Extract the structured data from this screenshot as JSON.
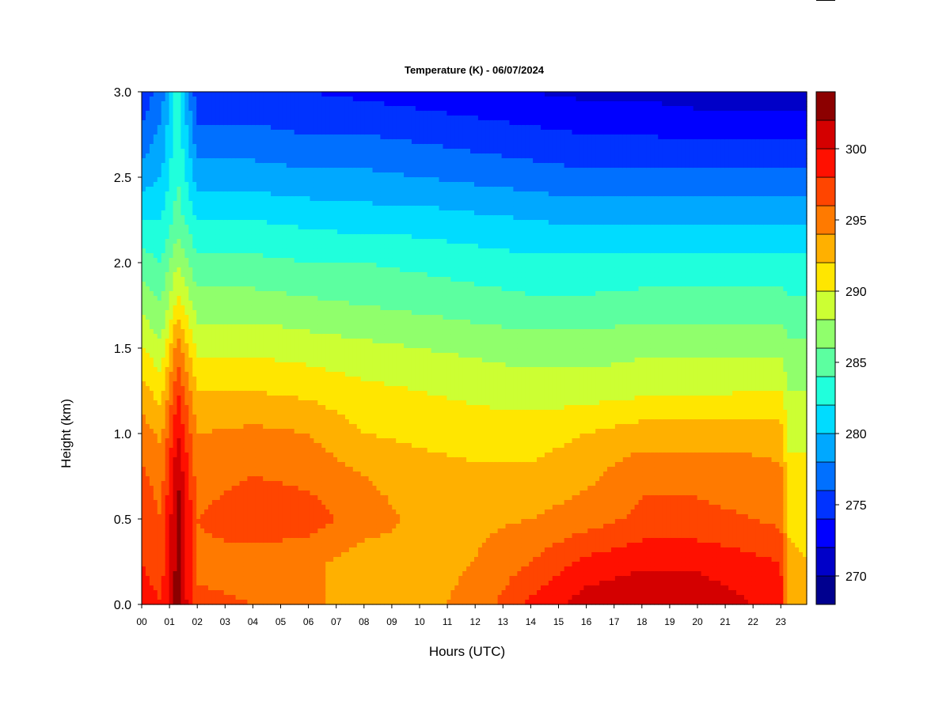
{
  "chart_data": {
    "type": "heatmap",
    "title": "Temperature (K) - 06/07/2024",
    "xlabel": "Hours (UTC)",
    "ylabel": "Height (km)",
    "x_ticks": [
      "00",
      "01",
      "02",
      "03",
      "04",
      "05",
      "06",
      "07",
      "08",
      "09",
      "10",
      "11",
      "12",
      "13",
      "14",
      "15",
      "16",
      "17",
      "18",
      "19",
      "20",
      "21",
      "22",
      "23"
    ],
    "xlim": [
      0,
      23.9
    ],
    "ylim": [
      0.0,
      3.0
    ],
    "y_ticks": [
      "0.0",
      "0.5",
      "1.0",
      "1.5",
      "2.0",
      "2.5",
      "3.0"
    ],
    "colorbar": {
      "levels": [
        268,
        270,
        272,
        274,
        276,
        278,
        280,
        282,
        284,
        286,
        288,
        290,
        292,
        294,
        296,
        298,
        300,
        302,
        304
      ],
      "colors": [
        "#00008f",
        "#0000c8",
        "#0000ff",
        "#0033ff",
        "#0070ff",
        "#00a8ff",
        "#00dcff",
        "#20ffdc",
        "#5cffa0",
        "#90ff6c",
        "#ccff33",
        "#ffe600",
        "#ffb000",
        "#ff7a00",
        "#ff4500",
        "#ff1000",
        "#d40000",
        "#8c0000"
      ],
      "tick_values": [
        270,
        275,
        280,
        285,
        290,
        295,
        300
      ],
      "tick_labels": [
        "270",
        "275",
        "280",
        "285",
        "290",
        "295",
        "300"
      ]
    },
    "profile_heights_km": [
      0.0,
      0.25,
      0.5,
      0.75,
      1.0,
      1.25,
      1.5,
      1.75,
      2.0,
      2.25,
      2.5,
      2.75,
      3.0
    ],
    "profiles": [
      {
        "hour": 0,
        "temp_K": [
          299,
          298,
          297.5,
          296.5,
          295,
          293,
          290,
          287.5,
          285,
          282,
          279,
          276.5,
          274.5
        ]
      },
      {
        "hour": 0.7,
        "temp_K": [
          298,
          297,
          296,
          295,
          293.5,
          291,
          288.5,
          286,
          284,
          282,
          280,
          278.5,
          277
        ]
      },
      {
        "hour": 1.3,
        "temp_K": [
          303,
          303,
          303,
          302,
          300,
          298,
          295,
          291,
          288,
          285,
          284,
          283.5,
          283
        ]
      },
      {
        "hour": 2,
        "temp_K": [
          296.5,
          295.5,
          296,
          295,
          294,
          292,
          289.5,
          287,
          284.5,
          282,
          279,
          276.5,
          274.5
        ]
      },
      {
        "hour": 4,
        "temp_K": [
          296,
          295,
          297.5,
          296,
          294.5,
          292,
          289.5,
          287,
          284.5,
          282,
          279,
          276.5,
          274.5
        ]
      },
      {
        "hour": 6,
        "temp_K": [
          294.5,
          294.5,
          297,
          295.5,
          294,
          291.5,
          289,
          286.5,
          284,
          281.5,
          278.5,
          276,
          274
        ]
      },
      {
        "hour": 8,
        "temp_K": [
          293,
          293,
          295,
          294,
          292,
          290.5,
          288.5,
          286,
          284,
          281,
          278.5,
          276,
          273.5
        ]
      },
      {
        "hour": 10,
        "temp_K": [
          293.5,
          293.5,
          293.5,
          293,
          291.5,
          290,
          288,
          285.5,
          283.5,
          281,
          278,
          275.5,
          273
        ]
      },
      {
        "hour": 12,
        "temp_K": [
          294.5,
          294,
          293.5,
          292.5,
          291,
          289.5,
          287.5,
          285,
          283,
          280.5,
          277.5,
          275,
          272.5
        ]
      },
      {
        "hour": 14,
        "temp_K": [
          298.5,
          296,
          294,
          292.5,
          291,
          289,
          287,
          284.5,
          282.5,
          280,
          277,
          274.5,
          272
        ]
      },
      {
        "hour": 16,
        "temp_K": [
          301,
          298.5,
          295,
          293.5,
          292,
          289,
          287,
          284.5,
          282.5,
          279.5,
          276.5,
          274,
          271.5
        ]
      },
      {
        "hour": 18,
        "temp_K": [
          302,
          299.5,
          296.5,
          295.5,
          293,
          289.5,
          287.5,
          285,
          282.5,
          279.5,
          276.5,
          274,
          271.5
        ]
      },
      {
        "hour": 20,
        "temp_K": [
          301.5,
          299.5,
          296.5,
          295.5,
          293,
          289.5,
          287.5,
          285,
          282.5,
          279.5,
          276.5,
          273.5,
          271
        ]
      },
      {
        "hour": 22,
        "temp_K": [
          300,
          298.5,
          296,
          295,
          293,
          290,
          287.5,
          285,
          282.5,
          279.5,
          276.5,
          273.5,
          271
        ]
      },
      {
        "hour": 23,
        "temp_K": [
          299,
          298,
          295.5,
          294.5,
          293,
          290,
          287.5,
          285,
          282.5,
          279.5,
          276.5,
          273.5,
          271
        ]
      },
      {
        "hour": 23.3,
        "temp_K": [
          293,
          292.5,
          291.5,
          290.5,
          289.5,
          288,
          286.5,
          284.5,
          282.5,
          279.5,
          276.5,
          273.5,
          271
        ]
      },
      {
        "hour": 23.9,
        "temp_K": [
          293,
          292,
          291.5,
          290.5,
          289.5,
          288,
          286.5,
          284.5,
          282.5,
          279.5,
          276.5,
          273.5,
          271
        ]
      }
    ]
  }
}
